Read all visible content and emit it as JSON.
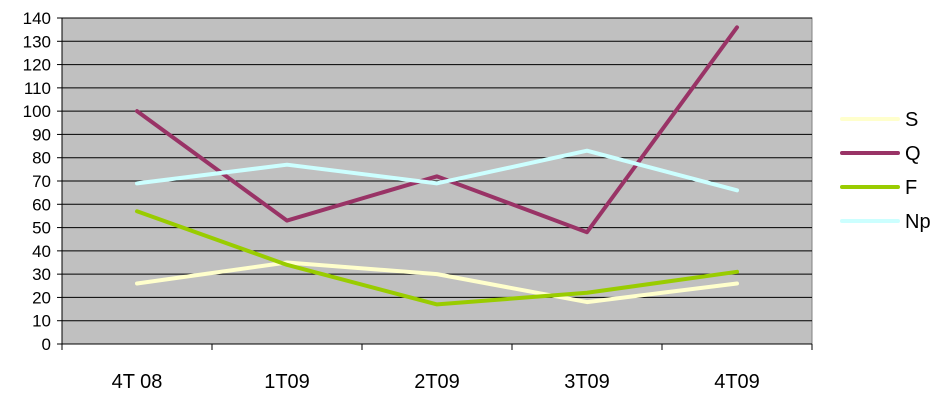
{
  "chart_data": {
    "type": "line",
    "categories": [
      "4T 08",
      "1T09",
      "2T09",
      "3T09",
      "4T09"
    ],
    "ylim": [
      0,
      140
    ],
    "yticks": [
      0,
      10,
      20,
      30,
      40,
      50,
      60,
      70,
      80,
      90,
      100,
      110,
      120,
      130,
      140
    ],
    "grid": true,
    "legend_position": "right",
    "plot_background": "#c0c0c0",
    "series": [
      {
        "name": "S",
        "color": "#ffffcc",
        "values": [
          26,
          35,
          30,
          18,
          26
        ]
      },
      {
        "name": "Q",
        "color": "#993366",
        "values": [
          100,
          53,
          72,
          48,
          136
        ]
      },
      {
        "name": "F",
        "color": "#99cc00",
        "values": [
          57,
          34,
          17,
          22,
          31
        ]
      },
      {
        "name": "Np",
        "color": "#ccffff",
        "values": [
          69,
          77,
          69,
          83,
          66
        ]
      }
    ]
  }
}
